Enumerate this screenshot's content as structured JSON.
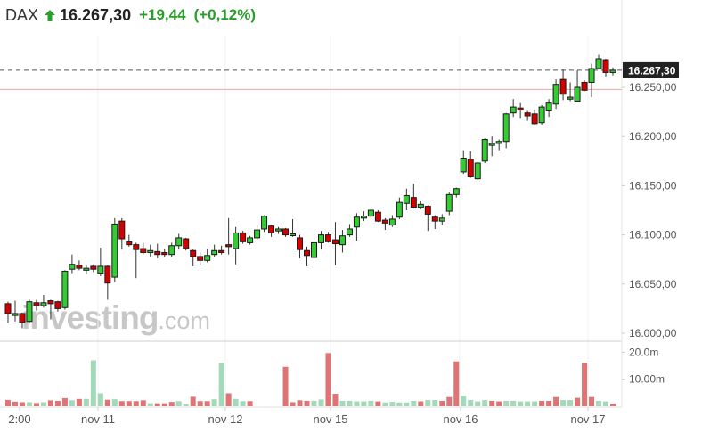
{
  "header": {
    "symbol": "DAX",
    "direction_icon": "arrow-up-icon",
    "price": "16.267,30",
    "change": "+19,44",
    "change_pct": "(+0,12%)",
    "change_color": "#2a9d2a"
  },
  "watermark": {
    "brand": "investing",
    "suffix": ".com"
  },
  "chart_data": {
    "type": "candlestick",
    "title": "",
    "price_axis": {
      "ylim": [
        16000,
        16280
      ],
      "ticks": [
        "16.000,00",
        "16.050,00",
        "16.100,00",
        "16.150,00",
        "16.200,00",
        "16.250,00"
      ],
      "tick_values": [
        16000,
        16050,
        16100,
        16150,
        16200,
        16250
      ],
      "position": "right"
    },
    "current_price": {
      "value": 16267.3,
      "label": "16.267,30",
      "line": "dashed"
    },
    "previous_close": {
      "value": 16247.86,
      "color": "#f2a5a5"
    },
    "x_ticks": [
      "2:00",
      "nov 11",
      "nov 12",
      "nov 15",
      "nov 16",
      "nov 17"
    ],
    "colors": {
      "up": "#33cc33",
      "down": "#d40000",
      "volume_up": "#a3d9b8",
      "volume_down": "#e07474"
    },
    "ohlc_columns": [
      "open",
      "high",
      "low",
      "close"
    ],
    "ohlc": [
      [
        16030,
        16032,
        16010,
        16020
      ],
      [
        16018,
        16033,
        16012,
        16020
      ],
      [
        16020,
        16021,
        16005,
        16011
      ],
      [
        16012,
        16034,
        16010,
        16032
      ],
      [
        16031,
        16034,
        16023,
        16028
      ],
      [
        16028,
        16039,
        16026,
        16031
      ],
      [
        16033,
        16034,
        16014,
        16030
      ],
      [
        16032,
        16033,
        16022,
        16025
      ],
      [
        16026,
        16064,
        16024,
        16063
      ],
      [
        16065,
        16080,
        16061,
        16070
      ],
      [
        16069,
        16074,
        16064,
        16066
      ],
      [
        16064,
        16070,
        16060,
        16066
      ],
      [
        16068,
        16070,
        16062,
        16065
      ],
      [
        16061,
        16087,
        16058,
        16068
      ],
      [
        16068,
        16069,
        16034,
        16051
      ],
      [
        16057,
        16117,
        16052,
        16111
      ],
      [
        16114,
        16117,
        16085,
        16096
      ],
      [
        16093,
        16100,
        16088,
        16090
      ],
      [
        16090,
        16092,
        16056,
        16085
      ],
      [
        16086,
        16092,
        16080,
        16082
      ],
      [
        16082,
        16090,
        16078,
        16084
      ],
      [
        16083,
        16091,
        16076,
        16080
      ],
      [
        16082,
        16086,
        16077,
        16080
      ],
      [
        16080,
        16092,
        16077,
        16089
      ],
      [
        16089,
        16101,
        16085,
        16097
      ],
      [
        16096,
        16097,
        16084,
        16086
      ],
      [
        16084,
        16085,
        16068,
        16078
      ],
      [
        16078,
        16082,
        16070,
        16074
      ],
      [
        16074,
        16086,
        16072,
        16079
      ],
      [
        16080,
        16090,
        16078,
        16084
      ],
      [
        16084,
        16089,
        16080,
        16082
      ],
      [
        16090,
        16117,
        16080,
        16088
      ],
      [
        16086,
        16108,
        16070,
        16102
      ],
      [
        16102,
        16104,
        16091,
        16093
      ],
      [
        16092,
        16099,
        16090,
        16097
      ],
      [
        16097,
        16110,
        16095,
        16105
      ],
      [
        16106,
        16120,
        16103,
        16119
      ],
      [
        16109,
        16110,
        16098,
        16102
      ],
      [
        16104,
        16108,
        16101,
        16106
      ],
      [
        16106,
        16107,
        16098,
        16100
      ],
      [
        16100,
        16116,
        16098,
        16101
      ],
      [
        16097,
        16100,
        16076,
        16085
      ],
      [
        16084,
        16088,
        16068,
        16079
      ],
      [
        16077,
        16094,
        16072,
        16092
      ],
      [
        16092,
        16104,
        16085,
        16100
      ],
      [
        16100,
        16103,
        16092,
        16093
      ],
      [
        16095,
        16113,
        16069,
        16091
      ],
      [
        16090,
        16105,
        16082,
        16099
      ],
      [
        16100,
        16111,
        16098,
        16106
      ],
      [
        16108,
        16122,
        16094,
        16118
      ],
      [
        16117,
        16124,
        16114,
        16119
      ],
      [
        16119,
        16126,
        16116,
        16125
      ],
      [
        16123,
        16125,
        16113,
        16114
      ],
      [
        16115,
        16117,
        16105,
        16112
      ],
      [
        16110,
        16120,
        16108,
        16116
      ],
      [
        16118,
        16138,
        16116,
        16133
      ],
      [
        16132,
        16147,
        16125,
        16140
      ],
      [
        16138,
        16152,
        16127,
        16128
      ],
      [
        16128,
        16134,
        16126,
        16131
      ],
      [
        16129,
        16130,
        16104,
        16121
      ],
      [
        16118,
        16120,
        16106,
        16114
      ],
      [
        16114,
        16121,
        16110,
        16117
      ],
      [
        16124,
        16143,
        16120,
        16141
      ],
      [
        16141,
        16148,
        16138,
        16147
      ],
      [
        16164,
        16186,
        16162,
        16178
      ],
      [
        16177,
        16185,
        16158,
        16159
      ],
      [
        16157,
        16174,
        16156,
        16173
      ],
      [
        16175,
        16198,
        16173,
        16197
      ],
      [
        16191,
        16200,
        16180,
        16193
      ],
      [
        16193,
        16197,
        16186,
        16195
      ],
      [
        16195,
        16224,
        16188,
        16223
      ],
      [
        16224,
        16238,
        16220,
        16230
      ],
      [
        16229,
        16234,
        16218,
        16227
      ],
      [
        16224,
        16226,
        16216,
        16221
      ],
      [
        16223,
        16227,
        16212,
        16213
      ],
      [
        16214,
        16232,
        16212,
        16230
      ],
      [
        16226,
        16238,
        16220,
        16234
      ],
      [
        16233,
        16258,
        16228,
        16253
      ],
      [
        16258,
        16268,
        16237,
        16243
      ],
      [
        16238,
        16255,
        16236,
        16240
      ],
      [
        16236,
        16267,
        16235,
        16250
      ],
      [
        16255,
        16257,
        16246,
        16247
      ],
      [
        16255,
        16274,
        16240,
        16269
      ],
      [
        16269,
        16283,
        16268,
        16279
      ],
      [
        16278,
        16279,
        16261,
        16265
      ],
      [
        16265,
        16270,
        16262,
        16267.3
      ]
    ],
    "volume_axis": {
      "ticks": [
        "10.00m",
        "20.0m"
      ],
      "tick_values": [
        10,
        20
      ],
      "unit": "millions"
    },
    "volume": [
      2.3,
      1.7,
      1.5,
      1.5,
      1.2,
      1.5,
      2.2,
      2,
      3,
      2.2,
      2.7,
      2.7,
      17,
      4.8,
      2.4,
      2.6,
      1.9,
      1.9,
      1.9,
      2.2,
      1.1,
      1.1,
      1.1,
      1.6,
      1.9,
      0.8,
      3.5,
      1.9,
      1.9,
      2.6,
      16,
      4.8,
      2.7,
      1.9,
      1.9,
      0,
      0,
      0,
      0,
      14.6,
      1.5,
      2.2,
      2,
      2,
      2.5,
      19.7,
      4.6,
      2,
      2,
      1.8,
      1.8,
      2,
      1.8,
      1.4,
      1.6,
      1.4,
      1.4,
      2,
      1.8,
      2.3,
      2.3,
      2,
      3.4,
      16.6,
      3.8,
      2.3,
      1.8,
      2.3,
      2,
      1.8,
      2,
      2,
      1.8,
      1.8,
      1.8,
      2,
      2,
      3.4,
      2.3,
      2.3,
      3.1,
      16,
      3.4,
      2,
      1.8,
      0.9
    ],
    "volume_direction": "dddududdduduuududddduddduuddduuduuduuuudddduudduuuuuduuuuuduuddduuuudduuuuuddduuddduuduudu"
  }
}
